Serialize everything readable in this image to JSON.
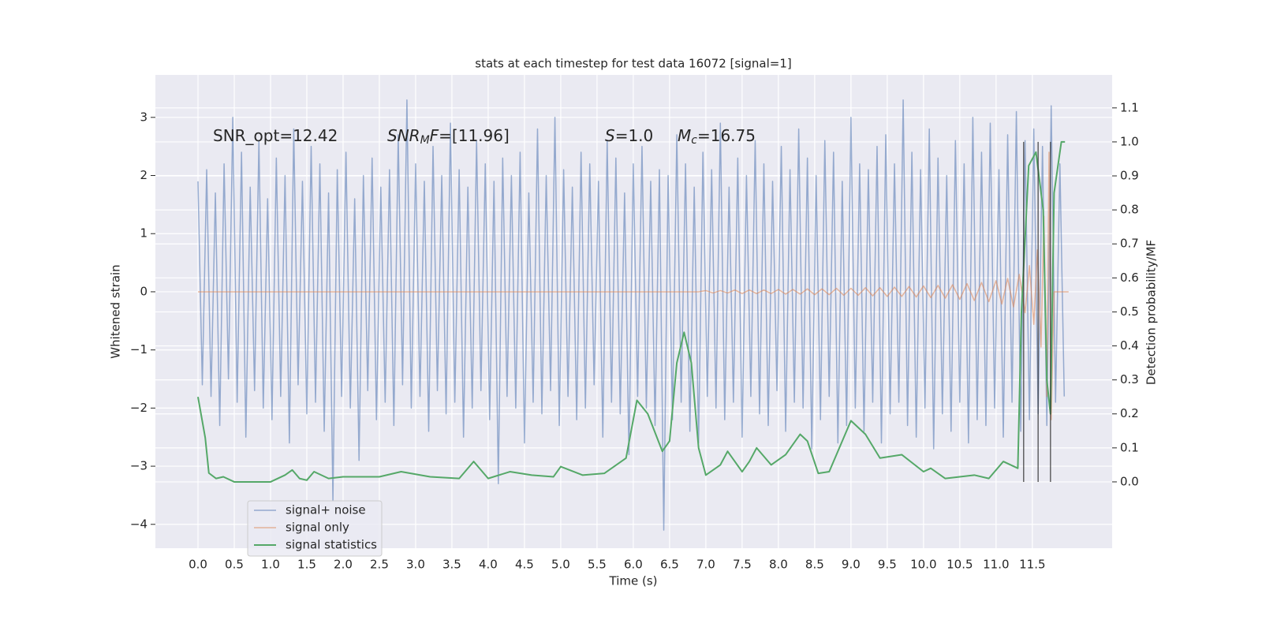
{
  "chart_data": {
    "type": "line",
    "title": "stats at each timestep for test data 16072 [signal=1]",
    "xlabel": "Time (s)",
    "ylabel": "Whitened strain",
    "y2label": "Detection probability/MF",
    "xlim": [
      -0.587,
      12.6
    ],
    "ylim": [
      -4.41,
      3.73
    ],
    "y2lim": [
      -0.195,
      1.197
    ],
    "xticks": [
      {
        "value": 0,
        "label": "0.0"
      },
      0.5,
      {
        "value": 1,
        "label": "1.0"
      },
      1.5,
      {
        "value": 2,
        "label": "2.0"
      },
      2.5,
      {
        "value": 3,
        "label": "3.0"
      },
      3.5,
      {
        "value": 4,
        "label": "4.0"
      },
      4.5,
      {
        "value": 5,
        "label": "5.0"
      },
      5.5,
      {
        "value": 6,
        "label": "6.0"
      },
      6.5,
      {
        "value": 7,
        "label": "7.0"
      },
      7.5,
      {
        "value": 8,
        "label": "8.0"
      },
      8.5,
      {
        "value": 9,
        "label": "9.0"
      },
      9.5,
      {
        "value": 10,
        "label": "10.0"
      },
      10.5,
      {
        "value": 11,
        "label": "11.0"
      },
      11.5
    ],
    "yticks": [
      {
        "value": -4,
        "label": "−4"
      },
      {
        "value": -3,
        "label": "−3"
      },
      {
        "value": -2,
        "label": "−2"
      },
      {
        "value": -1,
        "label": "−1"
      },
      0,
      1,
      2,
      3
    ],
    "y2ticks": [
      {
        "value": 0,
        "label": "0.0"
      },
      0.1,
      0.2,
      0.3,
      0.4,
      0.5,
      0.6,
      0.7,
      0.8,
      0.9,
      {
        "value": 1,
        "label": "1.0"
      },
      1.1
    ],
    "grid": true,
    "legend": "lower left",
    "annotations": [
      [
        {
          "text": "SNR_opt=12.42",
          "style": "normal"
        }
      ],
      [
        {
          "text": "SNR",
          "style": "italic"
        },
        {
          "text": "M",
          "style": "italic-sub"
        },
        {
          "text": "F",
          "style": "italic"
        },
        {
          "text": "=[11.96]",
          "style": "normal"
        }
      ],
      [
        {
          "text": "S",
          "style": "italic"
        },
        {
          "text": "=1.0",
          "style": "normal"
        }
      ],
      [
        {
          "text": "M",
          "style": "italic"
        },
        {
          "text": "c",
          "style": "italic-sub"
        },
        {
          "text": "=16.75",
          "style": "normal"
        }
      ]
    ],
    "markers": {
      "x": [
        11.38,
        11.58,
        11.75
      ],
      "y2range": [
        0,
        1
      ],
      "color": "#333333"
    },
    "series": [
      {
        "name": "signal+ noise",
        "color": "#4c72b0",
        "x": [
          0,
          0.06,
          0.12,
          0.18,
          0.24,
          0.3,
          0.36,
          0.42,
          0.48,
          0.54,
          0.6,
          0.66,
          0.72,
          0.78,
          0.84,
          0.9,
          0.96,
          1.02,
          1.08,
          1.14,
          1.2,
          1.26,
          1.32,
          1.38,
          1.44,
          1.5,
          1.56,
          1.62,
          1.68,
          1.74,
          1.8,
          1.86,
          1.92,
          1.98,
          2.04,
          2.1,
          2.16,
          2.22,
          2.28,
          2.34,
          2.4,
          2.46,
          2.52,
          2.58,
          2.64,
          2.7,
          2.76,
          2.82,
          2.88,
          2.94,
          3,
          3.06,
          3.12,
          3.18,
          3.24,
          3.3,
          3.36,
          3.42,
          3.48,
          3.54,
          3.6,
          3.66,
          3.72,
          3.78,
          3.84,
          3.9,
          3.96,
          4.02,
          4.08,
          4.14,
          4.2,
          4.26,
          4.32,
          4.38,
          4.44,
          4.5,
          4.56,
          4.62,
          4.68,
          4.74,
          4.8,
          4.86,
          4.92,
          4.98,
          5.04,
          5.1,
          5.16,
          5.22,
          5.28,
          5.34,
          5.4,
          5.46,
          5.52,
          5.58,
          5.64,
          5.7,
          5.76,
          5.82,
          5.88,
          5.94,
          6,
          6.06,
          6.12,
          6.18,
          6.24,
          6.3,
          6.36,
          6.42,
          6.48,
          6.54,
          6.6,
          6.66,
          6.72,
          6.78,
          6.84,
          6.9,
          6.96,
          7.02,
          7.08,
          7.14,
          7.2,
          7.26,
          7.32,
          7.38,
          7.44,
          7.5,
          7.56,
          7.62,
          7.68,
          7.74,
          7.8,
          7.86,
          7.92,
          7.98,
          8.04,
          8.1,
          8.16,
          8.22,
          8.28,
          8.34,
          8.4,
          8.46,
          8.52,
          8.58,
          8.64,
          8.7,
          8.76,
          8.82,
          8.88,
          8.94,
          9,
          9.06,
          9.12,
          9.18,
          9.24,
          9.3,
          9.36,
          9.42,
          9.48,
          9.54,
          9.6,
          9.66,
          9.72,
          9.78,
          9.84,
          9.9,
          9.96,
          10.02,
          10.08,
          10.14,
          10.2,
          10.26,
          10.32,
          10.38,
          10.44,
          10.5,
          10.56,
          10.62,
          10.68,
          10.74,
          10.8,
          10.86,
          10.92,
          10.98,
          11.04,
          11.1,
          11.16,
          11.22,
          11.28,
          11.34,
          11.4,
          11.46,
          11.52,
          11.58,
          11.64,
          11.7,
          11.76,
          11.82,
          11.88,
          11.94
        ],
        "values": [
          1.9,
          -1.6,
          2.1,
          -1.8,
          1.7,
          -2.3,
          2.2,
          -1.5,
          3.0,
          -1.9,
          2.4,
          -2.5,
          1.8,
          -1.7,
          2.6,
          -2.0,
          1.6,
          -2.2,
          2.3,
          -1.8,
          2.0,
          -2.6,
          2.8,
          -1.6,
          1.9,
          -2.1,
          2.5,
          -1.9,
          2.2,
          -2.4,
          1.7,
          -3.6,
          2.1,
          -1.8,
          2.4,
          -2.0,
          1.6,
          -2.9,
          2.0,
          -1.7,
          2.3,
          -2.2,
          1.8,
          -1.9,
          2.1,
          -2.3,
          2.7,
          -1.6,
          3.3,
          -2.0,
          2.2,
          -1.8,
          1.9,
          -2.4,
          2.5,
          -1.7,
          2.0,
          -2.1,
          2.9,
          -1.9,
          2.1,
          -2.5,
          1.8,
          -2.0,
          2.6,
          -1.7,
          2.2,
          -2.2,
          1.9,
          -3.3,
          2.3,
          -1.8,
          2.0,
          -2.0,
          2.4,
          -2.6,
          1.7,
          -1.9,
          2.8,
          -2.1,
          2.0,
          -1.7,
          3.0,
          -2.3,
          2.1,
          -1.8,
          1.8,
          -2.2,
          2.4,
          -2.0,
          2.2,
          -1.6,
          1.9,
          -2.5,
          2.6,
          -1.9,
          2.3,
          -2.1,
          1.7,
          -2.8,
          2.2,
          -1.8,
          2.5,
          -2.0,
          1.9,
          -2.3,
          2.1,
          -4.1,
          2.0,
          -2.2,
          2.7,
          -1.9,
          2.2,
          -2.4,
          1.8,
          -2.6,
          2.4,
          -1.8,
          2.1,
          -2.0,
          2.9,
          -2.2,
          1.8,
          -1.9,
          2.3,
          -2.5,
          2.0,
          -1.8,
          2.6,
          -2.1,
          2.2,
          -2.3,
          1.9,
          -1.7,
          2.5,
          -2.4,
          2.1,
          -1.9,
          2.8,
          -2.0,
          2.3,
          -2.7,
          2.0,
          -2.2,
          2.6,
          -1.8,
          2.4,
          -2.6,
          1.9,
          -2.3,
          3.0,
          -2.0,
          2.2,
          -2.4,
          2.1,
          -1.9,
          2.5,
          -2.6,
          2.7,
          -2.1,
          2.2,
          -1.9,
          3.3,
          -2.3,
          2.4,
          -2.5,
          2.1,
          -2.0,
          2.8,
          -2.7,
          2.3,
          -2.1,
          2.0,
          -2.4,
          2.6,
          -1.9,
          2.2,
          -2.6,
          3.0,
          -2.2,
          2.4,
          -2.3,
          2.9,
          -2.0,
          2.1,
          -2.5,
          2.7,
          -1.9,
          3.1,
          -2.4,
          2.6,
          -2.2,
          2.8,
          -2.1,
          2.5,
          -2.3,
          3.2,
          -1.9,
          2.2,
          -1.8
        ]
      },
      {
        "name": "signal only",
        "color": "#dd8452",
        "x": [
          0,
          6.9,
          7,
          7.1,
          7.2,
          7.3,
          7.4,
          7.5,
          7.6,
          7.7,
          7.8,
          7.9,
          8,
          8.1,
          8.2,
          8.3,
          8.4,
          8.5,
          8.6,
          8.7,
          8.8,
          8.9,
          9,
          9.1,
          9.2,
          9.3,
          9.4,
          9.5,
          9.6,
          9.7,
          9.8,
          9.9,
          10,
          10.1,
          10.2,
          10.3,
          10.4,
          10.5,
          10.6,
          10.7,
          10.8,
          10.9,
          11,
          11.08,
          11.16,
          11.24,
          11.32,
          11.4,
          11.46,
          11.52,
          11.57,
          11.62,
          11.66,
          11.7,
          11.73,
          11.76,
          11.8,
          12
        ],
        "values": [
          0,
          0,
          0.02,
          -0.02,
          0.02,
          -0.02,
          0.03,
          -0.03,
          0.03,
          -0.03,
          0.03,
          -0.03,
          0.04,
          -0.04,
          0.04,
          -0.04,
          0.05,
          -0.05,
          0.05,
          -0.05,
          0.06,
          -0.06,
          0.06,
          -0.06,
          0.07,
          -0.07,
          0.07,
          -0.08,
          0.08,
          -0.08,
          0.09,
          -0.09,
          0.1,
          -0.1,
          0.11,
          -0.11,
          0.12,
          -0.13,
          0.14,
          -0.15,
          0.16,
          -0.17,
          0.19,
          -0.21,
          0.23,
          -0.26,
          0.3,
          -0.36,
          0.45,
          -0.56,
          0.72,
          -0.95,
          1.3,
          -1.8,
          2.4,
          -2.2,
          0,
          0
        ]
      },
      {
        "name": "signal statistics",
        "color": "#55a868",
        "axis": "y2",
        "x": [
          0,
          0.1,
          0.15,
          0.25,
          0.35,
          0.5,
          1.0,
          1.2,
          1.3,
          1.4,
          1.5,
          1.6,
          1.8,
          2.0,
          2.5,
          2.8,
          3.2,
          3.6,
          3.8,
          4.0,
          4.3,
          4.6,
          4.9,
          5.0,
          5.3,
          5.6,
          5.9,
          6.05,
          6.2,
          6.4,
          6.5,
          6.6,
          6.7,
          6.8,
          6.9,
          7.0,
          7.2,
          7.3,
          7.5,
          7.6,
          7.7,
          7.9,
          8.1,
          8.3,
          8.4,
          8.55,
          8.7,
          8.8,
          9.0,
          9.2,
          9.4,
          9.7,
          10.0,
          10.1,
          10.3,
          10.7,
          10.9,
          11.1,
          11.3,
          11.35,
          11.45,
          11.55,
          11.65,
          11.7,
          11.75,
          11.8,
          11.9,
          11.95
        ],
        "values": [
          0.25,
          0.13,
          0.026,
          0.01,
          0.015,
          0,
          0,
          0.02,
          0.035,
          0.01,
          0.005,
          0.03,
          0.01,
          0.015,
          0.015,
          0.03,
          0.015,
          0.01,
          0.06,
          0.01,
          0.03,
          0.02,
          0.015,
          0.045,
          0.02,
          0.025,
          0.07,
          0.24,
          0.2,
          0.09,
          0.12,
          0.35,
          0.44,
          0.35,
          0.1,
          0.02,
          0.05,
          0.09,
          0.03,
          0.06,
          0.1,
          0.05,
          0.08,
          0.14,
          0.12,
          0.025,
          0.03,
          0.08,
          0.18,
          0.14,
          0.07,
          0.08,
          0.03,
          0.04,
          0.01,
          0.02,
          0.01,
          0.06,
          0.04,
          0.5,
          0.93,
          0.97,
          0.8,
          0.3,
          0.2,
          0.85,
          1.0,
          1.0
        ]
      }
    ]
  }
}
